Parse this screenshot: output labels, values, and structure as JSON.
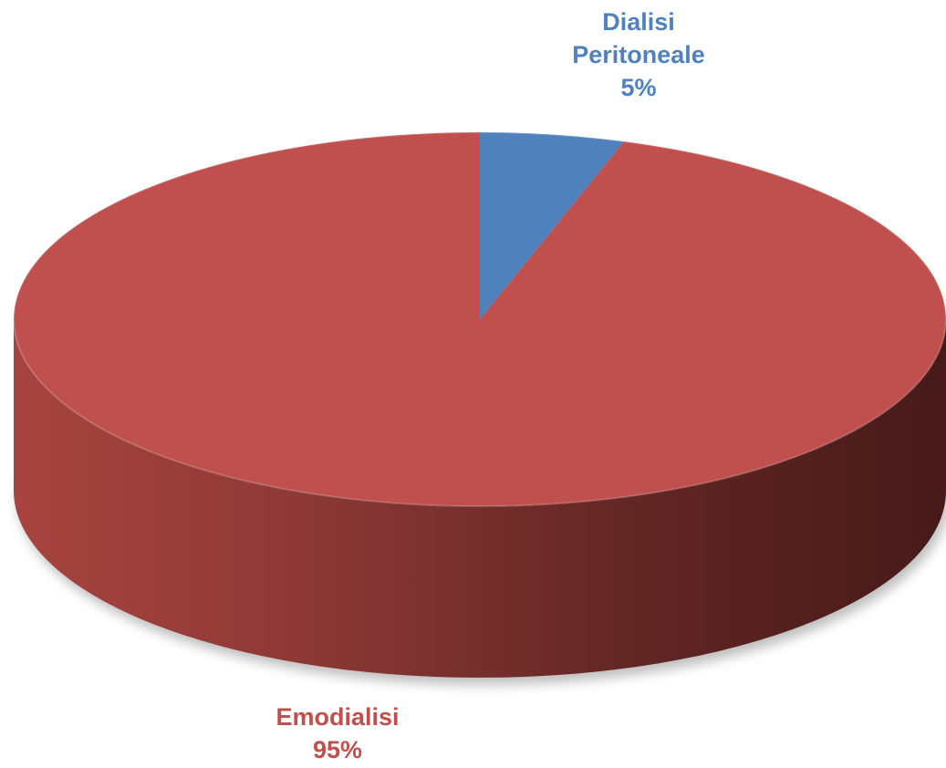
{
  "chart_data": {
    "type": "pie",
    "three_d": true,
    "categories": [
      "Dialisi Peritoneale",
      "Emodialisi"
    ],
    "values": [
      5,
      95
    ],
    "value_labels": [
      "5%",
      "95%"
    ],
    "colors": [
      "#4f81bd",
      "#c0504d"
    ]
  }
}
